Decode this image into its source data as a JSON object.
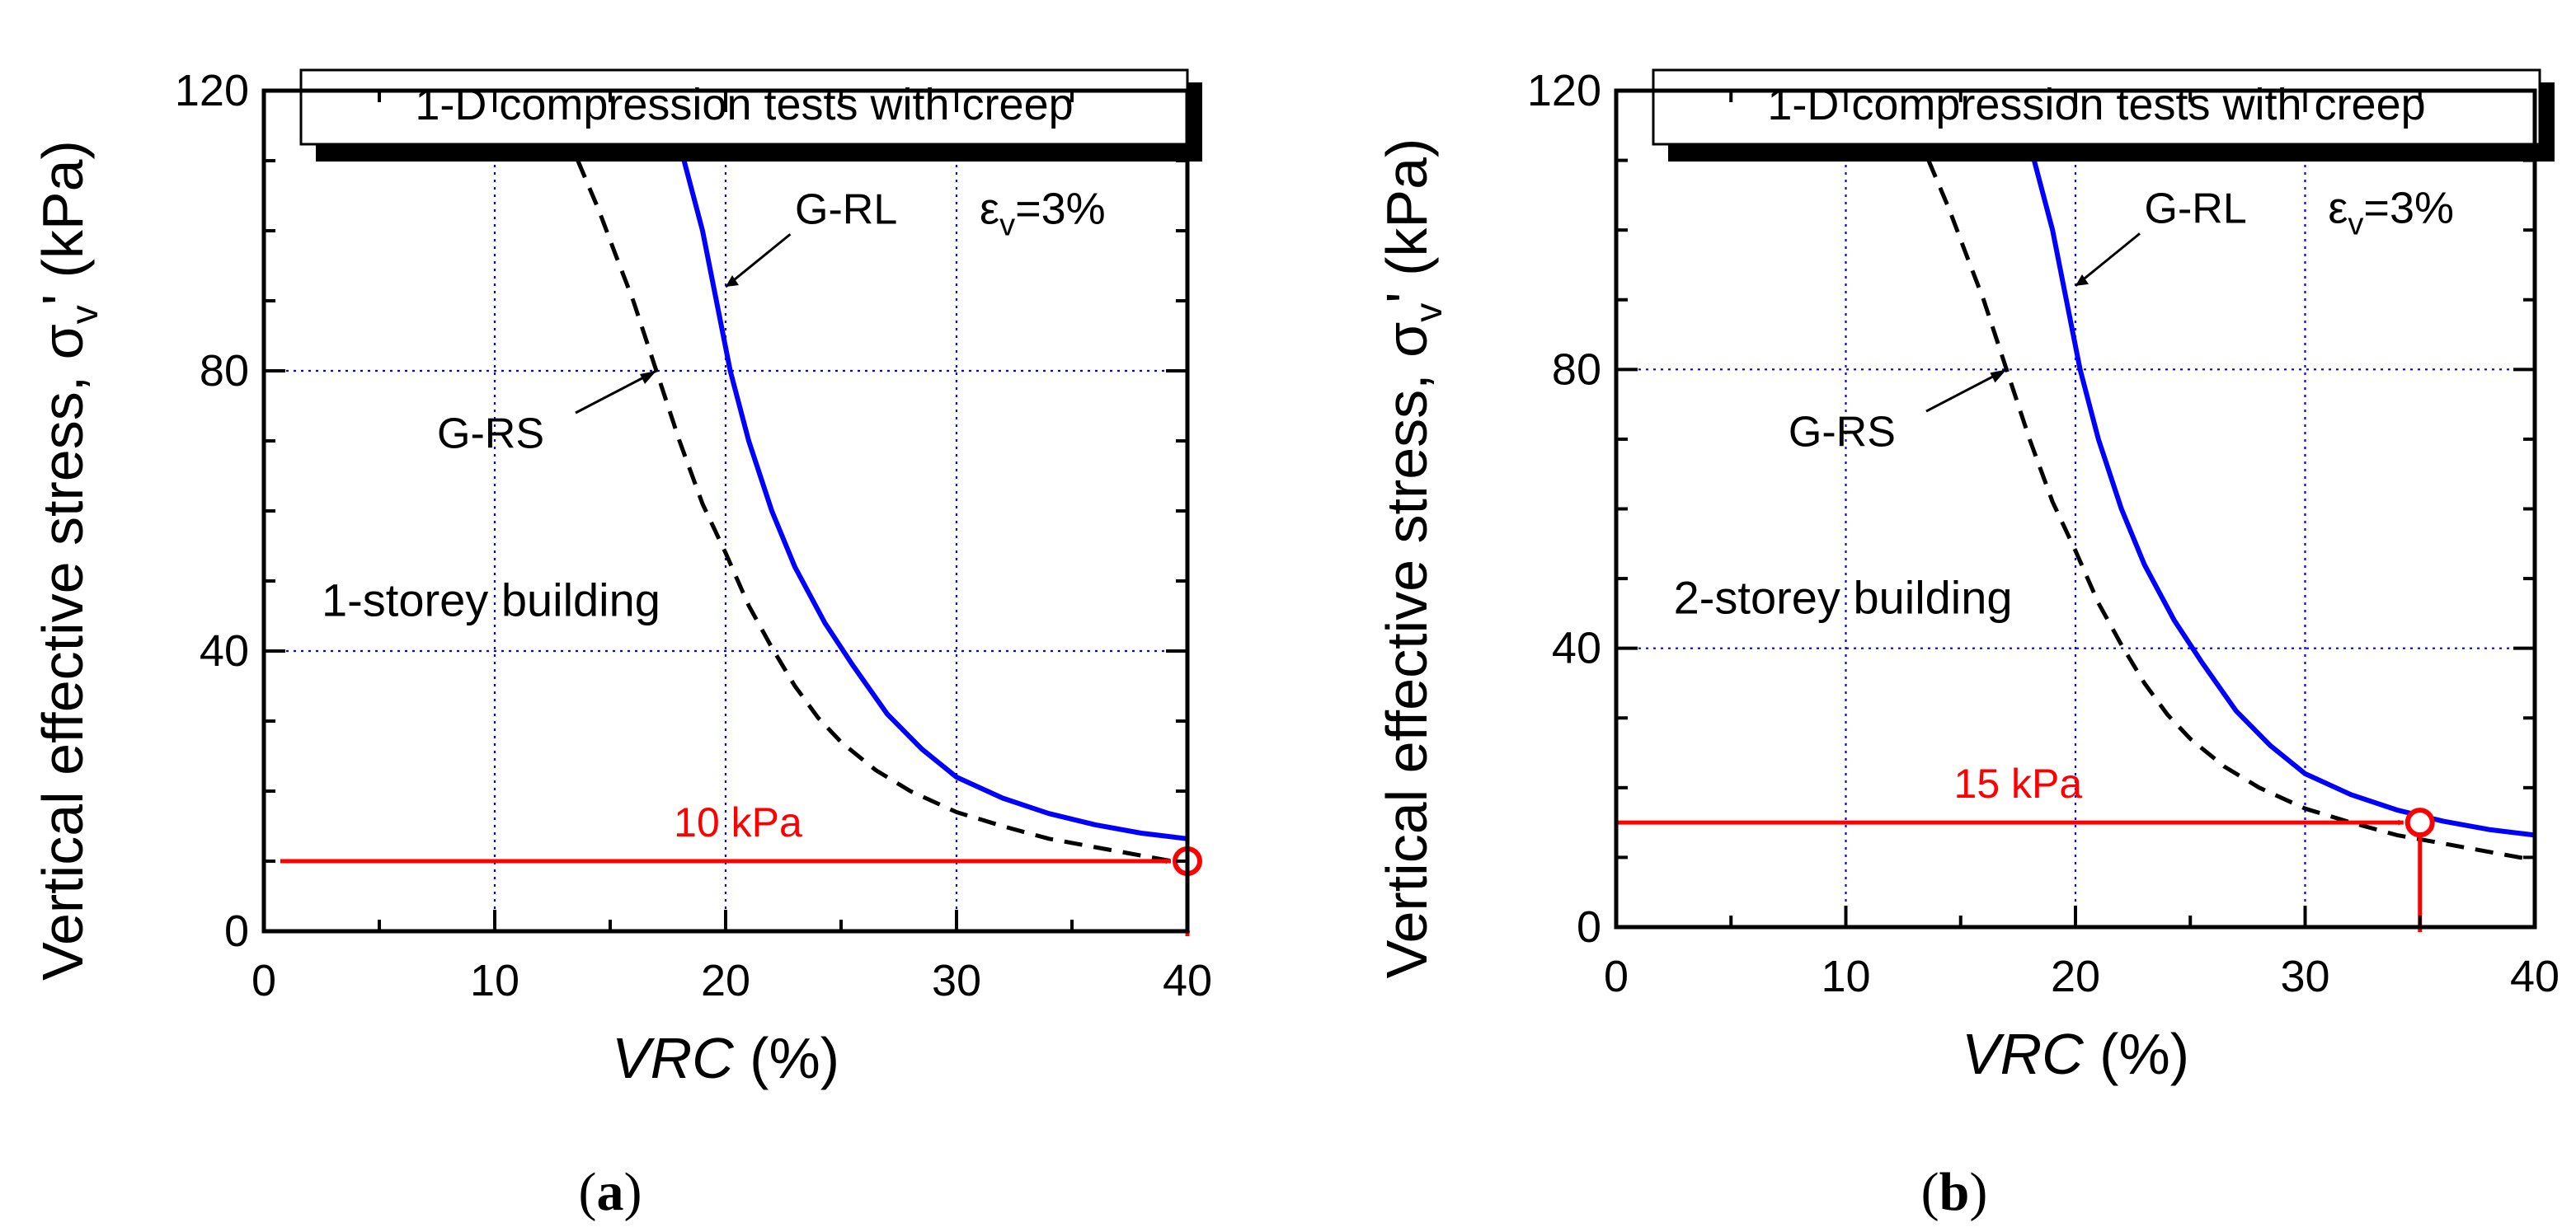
{
  "chart_data": [
    {
      "type": "line",
      "panel_label_prefix": "(",
      "panel_label_letter": "a",
      "panel_label_suffix": ")",
      "title_box": "1-D compression tests with creep",
      "ylabel_main": "Vertical effective stress, σ",
      "ylabel_sub": "v",
      "ylabel_tail": "' (kPa)",
      "xlabel_italic": "VRC",
      "xlabel_rest": " (%)",
      "xlim": [
        0,
        40
      ],
      "ylim": [
        0,
        120
      ],
      "x_ticks": [
        0,
        10,
        20,
        30,
        40
      ],
      "x_tick_labels": [
        "0",
        "10",
        "20",
        "30",
        "40"
      ],
      "y_ticks": [
        0,
        40,
        80,
        120
      ],
      "y_tick_labels": [
        "0",
        "40",
        "80",
        "120"
      ],
      "grid_x": [
        10,
        20,
        30
      ],
      "grid_y": [
        40,
        80
      ],
      "strain_label": {
        "main": "ε",
        "sub": "v",
        "tail": "=3%"
      },
      "building_label": "1-storey building",
      "series": [
        {
          "name": "G-RL",
          "style": "solid",
          "color": "#0000ff",
          "points": [
            [
              18.2,
              110
            ],
            [
              19,
              100
            ],
            [
              19.6,
              90
            ],
            [
              20.2,
              80
            ],
            [
              21,
              70
            ],
            [
              22,
              60
            ],
            [
              23,
              52
            ],
            [
              24.3,
              44
            ],
            [
              25.5,
              38
            ],
            [
              27,
              31
            ],
            [
              28.5,
              26
            ],
            [
              30,
              22
            ],
            [
              32,
              19
            ],
            [
              34,
              16.8
            ],
            [
              36,
              15.2
            ],
            [
              38,
              14
            ],
            [
              40,
              13.2
            ]
          ]
        },
        {
          "name": "G-RS",
          "style": "dashed",
          "color": "#000000",
          "points": [
            [
              13.6,
              110
            ],
            [
              14.5,
              103
            ],
            [
              15.3,
              96
            ],
            [
              16,
              90
            ],
            [
              17,
              80
            ],
            [
              18,
              70
            ],
            [
              19,
              61
            ],
            [
              20,
              54
            ],
            [
              21,
              46.5
            ],
            [
              22,
              40.5
            ],
            [
              23,
              35
            ],
            [
              24,
              30.5
            ],
            [
              25,
              27
            ],
            [
              26.5,
              23
            ],
            [
              28,
              20
            ],
            [
              30,
              17
            ],
            [
              32,
              15
            ],
            [
              34,
              13.2
            ],
            [
              36,
              12
            ],
            [
              38,
              10.8
            ],
            [
              40,
              9.6
            ]
          ]
        }
      ],
      "annotations": [
        {
          "text": "G-RL",
          "target": [
            20,
            92
          ]
        },
        {
          "text": "G-RS",
          "target": [
            17,
            80
          ]
        }
      ],
      "highlight": {
        "value_label": "10 kPa",
        "stress": 10,
        "vrc": 40,
        "color": "#ff0000"
      }
    },
    {
      "type": "line",
      "panel_label_prefix": "(",
      "panel_label_letter": "b",
      "panel_label_suffix": ")",
      "title_box": "1-D compression tests with creep",
      "ylabel_main": "Vertical effective stress, σ",
      "ylabel_sub": "v",
      "ylabel_tail": "' (kPa)",
      "xlabel_italic": "VRC",
      "xlabel_rest": " (%)",
      "xlim": [
        0,
        40
      ],
      "ylim": [
        0,
        120
      ],
      "x_ticks": [
        0,
        10,
        20,
        30,
        40
      ],
      "x_tick_labels": [
        "0",
        "10",
        "20",
        "30",
        "40"
      ],
      "y_ticks": [
        0,
        40,
        80,
        120
      ],
      "y_tick_labels": [
        "0",
        "40",
        "80",
        "120"
      ],
      "grid_x": [
        10,
        20,
        30
      ],
      "grid_y": [
        40,
        80
      ],
      "strain_label": {
        "main": "ε",
        "sub": "v",
        "tail": "=3%"
      },
      "building_label": "2-storey building",
      "series": [
        {
          "name": "G-RL",
          "style": "solid",
          "color": "#0000ff",
          "points": [
            [
              18.2,
              110
            ],
            [
              19,
              100
            ],
            [
              19.6,
              90
            ],
            [
              20.2,
              80
            ],
            [
              21,
              70
            ],
            [
              22,
              60
            ],
            [
              23,
              52
            ],
            [
              24.3,
              44
            ],
            [
              25.5,
              38
            ],
            [
              27,
              31
            ],
            [
              28.5,
              26
            ],
            [
              30,
              22
            ],
            [
              32,
              19
            ],
            [
              34,
              16.8
            ],
            [
              36,
              15.2
            ],
            [
              38,
              14
            ],
            [
              40,
              13.2
            ]
          ]
        },
        {
          "name": "G-RS",
          "style": "dashed",
          "color": "#000000",
          "points": [
            [
              13.6,
              110
            ],
            [
              14.5,
              103
            ],
            [
              15.3,
              96
            ],
            [
              16,
              90
            ],
            [
              17,
              80
            ],
            [
              18,
              70
            ],
            [
              19,
              61
            ],
            [
              20,
              54
            ],
            [
              21,
              46.5
            ],
            [
              22,
              40.5
            ],
            [
              23,
              35
            ],
            [
              24,
              30.5
            ],
            [
              25,
              27
            ],
            [
              26.5,
              23
            ],
            [
              28,
              20
            ],
            [
              30,
              17
            ],
            [
              32,
              15
            ],
            [
              34,
              13.2
            ],
            [
              36,
              12
            ],
            [
              38,
              10.8
            ],
            [
              40,
              9.6
            ]
          ]
        }
      ],
      "annotations": [
        {
          "text": "G-RL",
          "target": [
            20,
            92
          ]
        },
        {
          "text": "G-RS",
          "target": [
            17,
            80
          ]
        }
      ],
      "highlight": {
        "value_label": "15 kPa",
        "stress": 15,
        "vrc": 35,
        "color": "#ff0000"
      }
    }
  ]
}
